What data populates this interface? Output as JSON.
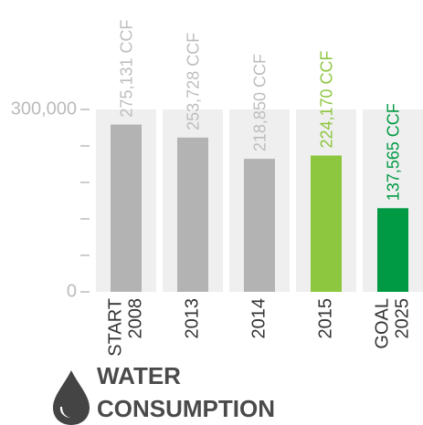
{
  "chart_data": {
    "type": "bar",
    "title": [
      "WATER",
      "CONSUMPTION"
    ],
    "categories": [
      [
        "START",
        "2008"
      ],
      [
        "2013"
      ],
      [
        "2014"
      ],
      [
        "2015"
      ],
      [
        "GOAL",
        "2025"
      ]
    ],
    "values": [
      275131,
      253728,
      218850,
      224170,
      137565
    ],
    "value_labels": [
      "275,131 CCF",
      "253,728 CCF",
      "218,850 CCF",
      "224,170 CCF",
      "137,565 CCF"
    ],
    "colors": [
      "#b3b3b3",
      "#b3b3b3",
      "#b3b3b3",
      "#8dc63f",
      "#009a44"
    ],
    "label_colors": [
      "#bdbdbd",
      "#bdbdbd",
      "#bdbdbd",
      "#8dc63f",
      "#009a44"
    ],
    "ylim": [
      0,
      300000
    ],
    "yticks": [
      0,
      {
        "value": 300000,
        "label": "300,000"
      }
    ],
    "yminorticks": [
      60000,
      120000,
      180000,
      240000
    ]
  }
}
